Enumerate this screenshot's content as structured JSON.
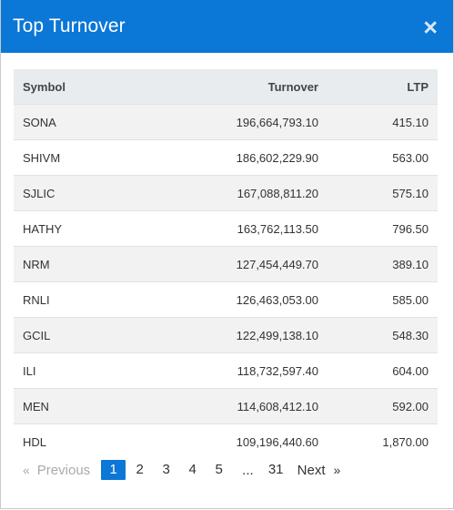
{
  "modal": {
    "title": "Top Turnover",
    "close_symbol": "×"
  },
  "table": {
    "columns": [
      "Symbol",
      "Turnover",
      "LTP"
    ],
    "rows": [
      {
        "symbol": "SONA",
        "turnover": "196,664,793.10",
        "ltp": "415.10"
      },
      {
        "symbol": "SHIVM",
        "turnover": "186,602,229.90",
        "ltp": "563.00"
      },
      {
        "symbol": "SJLIC",
        "turnover": "167,088,811.20",
        "ltp": "575.10"
      },
      {
        "symbol": "HATHY",
        "turnover": "163,762,113.50",
        "ltp": "796.50"
      },
      {
        "symbol": "NRM",
        "turnover": "127,454,449.70",
        "ltp": "389.10"
      },
      {
        "symbol": "RNLI",
        "turnover": "126,463,053.00",
        "ltp": "585.00"
      },
      {
        "symbol": "GCIL",
        "turnover": "122,499,138.10",
        "ltp": "548.30"
      },
      {
        "symbol": "ILI",
        "turnover": "118,732,597.40",
        "ltp": "604.00"
      },
      {
        "symbol": "MEN",
        "turnover": "114,608,412.10",
        "ltp": "592.00"
      },
      {
        "symbol": "HDL",
        "turnover": "109,196,440.60",
        "ltp": "1,870.00"
      }
    ]
  },
  "pagination": {
    "prev_arrow": "«",
    "prev_label": "Previous",
    "pages": [
      "1",
      "2",
      "3",
      "4",
      "5"
    ],
    "active_page": "1",
    "ellipsis": "...",
    "last_page": "31",
    "next_label": "Next",
    "next_arrow": "»"
  },
  "colors": {
    "header_bg": "#0b77d6",
    "active_page_bg": "#0b77d6",
    "table_head_bg": "#e9ecef",
    "stripe_bg": "#f2f2f2"
  }
}
